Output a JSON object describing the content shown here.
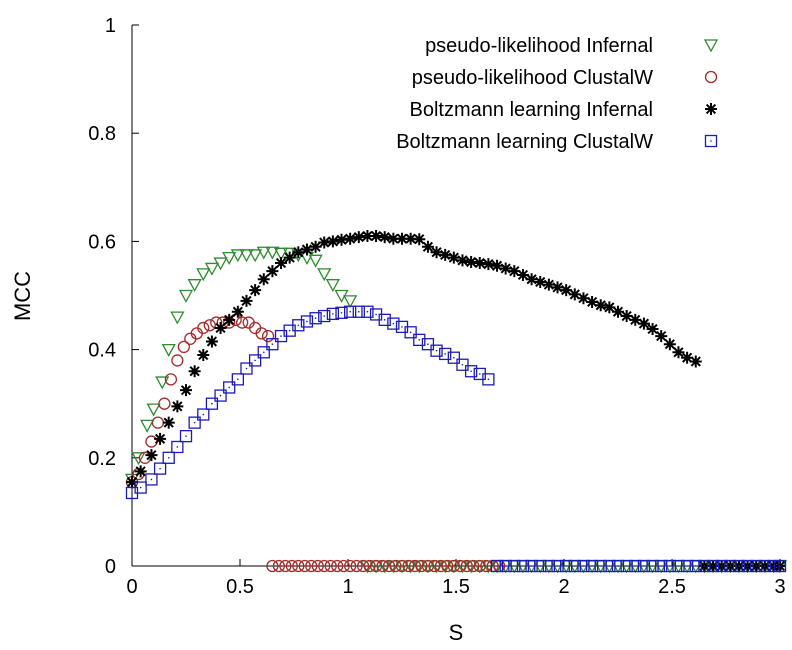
{
  "chart_data": {
    "type": "scatter",
    "xlabel": "S",
    "ylabel": "MCC",
    "xlim": [
      0,
      3
    ],
    "ylim": [
      0,
      1
    ],
    "xticks": [
      "0",
      "0.5",
      "1",
      "1.5",
      "2",
      "2.5",
      "3"
    ],
    "yticks": [
      "0",
      "0.2",
      "0.4",
      "0.6",
      "0.8",
      "1"
    ],
    "grid": false,
    "legend_position": "top-right",
    "series": [
      {
        "name": "pseudo-likelihood Infernal",
        "marker": "triangle-down",
        "color": "#2e8b2e",
        "x": [
          0.0,
          0.03,
          0.07,
          0.1,
          0.14,
          0.17,
          0.21,
          0.25,
          0.29,
          0.33,
          0.37,
          0.41,
          0.45,
          0.49,
          0.53,
          0.57,
          0.61,
          0.65,
          0.69,
          0.73,
          0.77,
          0.81,
          0.85,
          0.89,
          0.93,
          0.97,
          1.01,
          1.09,
          1.13,
          1.17,
          1.21,
          1.25,
          1.29,
          1.33,
          1.37,
          1.41,
          1.45,
          1.49,
          1.53,
          1.57,
          1.61,
          1.65,
          1.69,
          1.73,
          1.77,
          1.81,
          1.85,
          1.89,
          1.93,
          1.97,
          2.01,
          2.05,
          2.09,
          2.13,
          2.17,
          2.21,
          2.25,
          2.29,
          2.33,
          2.37,
          2.41,
          2.45,
          2.49,
          2.53,
          2.57,
          2.61,
          2.65,
          2.69,
          2.73,
          2.77,
          2.81,
          2.85,
          2.89,
          2.93,
          2.97,
          3.0
        ],
        "y": [
          0.16,
          0.2,
          0.26,
          0.29,
          0.34,
          0.4,
          0.46,
          0.5,
          0.52,
          0.54,
          0.55,
          0.56,
          0.57,
          0.575,
          0.575,
          0.575,
          0.58,
          0.58,
          0.578,
          0.578,
          0.575,
          0.57,
          0.565,
          0.54,
          0.52,
          0.5,
          0.49,
          0.0,
          0.0,
          0.0,
          0.0,
          0.0,
          0.0,
          0.0,
          0.0,
          0.0,
          0.0,
          0.0,
          0.0,
          0.0,
          0.0,
          0.0,
          0.0,
          0.0,
          0.0,
          0.0,
          0.0,
          0.0,
          0.0,
          0.0,
          0.0,
          0.0,
          0.0,
          0.0,
          0.0,
          0.0,
          0.0,
          0.0,
          0.0,
          0.0,
          0.0,
          0.0,
          0.0,
          0.0,
          0.0,
          0.0,
          0.0,
          0.0,
          0.0,
          0.0,
          0.0,
          0.0,
          0.0,
          0.0,
          0.0,
          0.0
        ]
      },
      {
        "name": "pseudo-likelihood ClustalW",
        "marker": "circle",
        "color": "#a52a2a",
        "x": [
          0.0,
          0.03,
          0.06,
          0.09,
          0.12,
          0.15,
          0.18,
          0.21,
          0.24,
          0.27,
          0.3,
          0.33,
          0.36,
          0.39,
          0.42,
          0.45,
          0.48,
          0.51,
          0.54,
          0.57,
          0.6,
          0.63,
          0.65,
          0.68,
          0.71,
          0.74,
          0.77,
          0.8,
          0.83,
          0.86,
          0.89,
          0.92,
          0.95,
          0.98,
          1.01,
          1.04,
          1.07,
          1.1,
          1.13,
          1.16,
          1.19,
          1.22,
          1.25,
          1.28,
          1.31,
          1.34,
          1.37,
          1.4,
          1.43,
          1.46,
          1.49,
          1.52,
          1.55,
          1.58,
          1.61,
          1.64,
          1.67,
          1.7
        ],
        "y": [
          0.155,
          0.17,
          0.2,
          0.23,
          0.265,
          0.3,
          0.345,
          0.38,
          0.405,
          0.42,
          0.43,
          0.44,
          0.445,
          0.45,
          0.45,
          0.45,
          0.455,
          0.45,
          0.45,
          0.44,
          0.43,
          0.425,
          0.0,
          0.0,
          0.0,
          0.0,
          0.0,
          0.0,
          0.0,
          0.0,
          0.0,
          0.0,
          0.0,
          0.0,
          0.0,
          0.0,
          0.0,
          0.0,
          0.0,
          0.0,
          0.0,
          0.0,
          0.0,
          0.0,
          0.0,
          0.0,
          0.0,
          0.0,
          0.0,
          0.0,
          0.0,
          0.0,
          0.0,
          0.0,
          0.0,
          0.0,
          0.0,
          0.0
        ]
      },
      {
        "name": "Boltzmann learning Infernal",
        "marker": "asterisk",
        "color": "#000000",
        "x": [
          0.0,
          0.04,
          0.09,
          0.13,
          0.17,
          0.21,
          0.25,
          0.29,
          0.33,
          0.37,
          0.41,
          0.45,
          0.49,
          0.53,
          0.57,
          0.61,
          0.65,
          0.69,
          0.73,
          0.77,
          0.81,
          0.85,
          0.89,
          0.93,
          0.97,
          1.01,
          1.05,
          1.09,
          1.13,
          1.17,
          1.21,
          1.25,
          1.29,
          1.33,
          1.37,
          1.41,
          1.45,
          1.49,
          1.53,
          1.57,
          1.61,
          1.65,
          1.69,
          1.73,
          1.77,
          1.81,
          1.85,
          1.89,
          1.93,
          1.97,
          2.01,
          2.05,
          2.09,
          2.13,
          2.17,
          2.21,
          2.25,
          2.29,
          2.33,
          2.37,
          2.41,
          2.45,
          2.49,
          2.53,
          2.57,
          2.61,
          2.65,
          2.69,
          2.73,
          2.77,
          2.81,
          2.85,
          2.89,
          2.93,
          2.97,
          3.0
        ],
        "y": [
          0.155,
          0.175,
          0.205,
          0.235,
          0.265,
          0.295,
          0.325,
          0.36,
          0.39,
          0.415,
          0.44,
          0.455,
          0.47,
          0.49,
          0.51,
          0.53,
          0.545,
          0.56,
          0.57,
          0.58,
          0.585,
          0.59,
          0.598,
          0.6,
          0.603,
          0.605,
          0.608,
          0.61,
          0.61,
          0.608,
          0.605,
          0.605,
          0.605,
          0.604,
          0.59,
          0.58,
          0.575,
          0.57,
          0.565,
          0.562,
          0.56,
          0.558,
          0.555,
          0.55,
          0.545,
          0.538,
          0.53,
          0.525,
          0.52,
          0.515,
          0.51,
          0.502,
          0.495,
          0.488,
          0.482,
          0.478,
          0.47,
          0.462,
          0.455,
          0.448,
          0.438,
          0.425,
          0.41,
          0.395,
          0.385,
          0.378,
          0.0,
          0.0,
          0.0,
          0.0,
          0.0,
          0.0,
          0.0,
          0.0,
          0.0,
          0.0
        ]
      },
      {
        "name": "Boltzmann learning ClustalW",
        "marker": "square",
        "color": "#1c1cb4",
        "x": [
          0.0,
          0.04,
          0.09,
          0.13,
          0.17,
          0.21,
          0.25,
          0.29,
          0.33,
          0.37,
          0.41,
          0.45,
          0.49,
          0.53,
          0.57,
          0.61,
          0.65,
          0.69,
          0.73,
          0.77,
          0.81,
          0.85,
          0.89,
          0.93,
          0.97,
          1.01,
          1.05,
          1.09,
          1.13,
          1.17,
          1.21,
          1.25,
          1.29,
          1.33,
          1.37,
          1.41,
          1.45,
          1.49,
          1.53,
          1.57,
          1.61,
          1.65,
          1.69,
          1.73,
          1.77,
          1.81,
          1.85,
          1.89,
          1.93,
          1.97,
          2.01,
          2.05,
          2.09,
          2.13,
          2.17,
          2.21,
          2.25,
          2.29,
          2.33,
          2.37,
          2.41,
          2.45,
          2.49,
          2.53,
          2.57,
          2.61,
          2.65,
          2.69,
          2.73,
          2.77,
          2.81,
          2.85,
          2.89,
          2.93,
          2.97,
          3.0
        ],
        "y": [
          0.135,
          0.145,
          0.16,
          0.18,
          0.2,
          0.22,
          0.24,
          0.265,
          0.28,
          0.3,
          0.315,
          0.33,
          0.345,
          0.365,
          0.38,
          0.395,
          0.41,
          0.425,
          0.435,
          0.445,
          0.452,
          0.458,
          0.462,
          0.466,
          0.468,
          0.47,
          0.47,
          0.47,
          0.465,
          0.455,
          0.448,
          0.442,
          0.432,
          0.418,
          0.41,
          0.398,
          0.392,
          0.385,
          0.372,
          0.36,
          0.355,
          0.345,
          0.0,
          0.0,
          0.0,
          0.0,
          0.0,
          0.0,
          0.0,
          0.0,
          0.0,
          0.0,
          0.0,
          0.0,
          0.0,
          0.0,
          0.0,
          0.0,
          0.0,
          0.0,
          0.0,
          0.0,
          0.0,
          0.0,
          0.0,
          0.0,
          0.0,
          0.0,
          0.0,
          0.0,
          0.0,
          0.0,
          0.0,
          0.0,
          0.0,
          0.0
        ]
      }
    ]
  }
}
